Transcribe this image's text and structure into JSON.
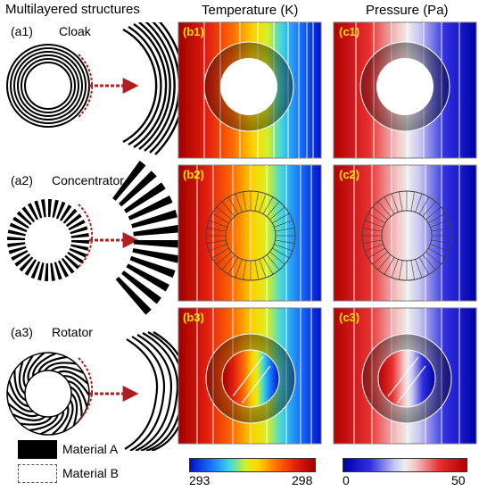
{
  "headers": {
    "left": "Multilayered structures",
    "middle": "Temperature (K)",
    "right": "Pressure (Pa)"
  },
  "rows": [
    {
      "label": "(a1)",
      "name": "Cloak",
      "temp_tag": "(b1)",
      "press_tag": "(c1)"
    },
    {
      "label": "(a2)",
      "name": "Concentrator",
      "temp_tag": "(b2)",
      "press_tag": "(c2)"
    },
    {
      "label": "(a3)",
      "name": "Rotator",
      "temp_tag": "(b3)",
      "press_tag": "(c3)"
    }
  ],
  "legend": {
    "material_a": "Material A",
    "material_b": "Material B"
  },
  "colorbars": {
    "temperature": {
      "min": "293",
      "max": "298"
    },
    "pressure": {
      "min": "0",
      "max": "50"
    }
  },
  "colors": {
    "arrow": "#b01f1f",
    "panel_border": "#777777"
  }
}
